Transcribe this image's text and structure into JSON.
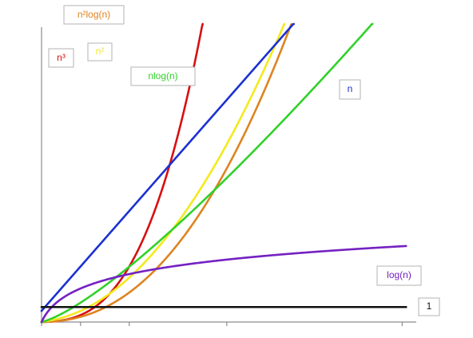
{
  "chart_data": {
    "type": "line",
    "title": "",
    "xlabel": "",
    "ylabel": "",
    "grid": false,
    "legend": "inline-labels",
    "x_axis": {
      "tick_values": [
        1,
        5,
        10,
        20,
        38
      ]
    },
    "series": [
      {
        "name": "n³",
        "formula": "n^3",
        "color": "#d80f0f"
      },
      {
        "name": "n²log(n)",
        "formula": "n^2*log(n)",
        "color": "#dd8421"
      },
      {
        "name": "n²",
        "formula": "n^2",
        "color": "#f4e91d"
      },
      {
        "name": "nlog(n)",
        "formula": "n*log(n)",
        "color": "#31d12a"
      },
      {
        "name": "n",
        "formula": "n",
        "color": "#1b31d2"
      },
      {
        "name": "log(n)",
        "formula": "log(n)",
        "color": "#7421c2"
      },
      {
        "name": "1",
        "formula": "1",
        "color": "#111111"
      }
    ]
  }
}
